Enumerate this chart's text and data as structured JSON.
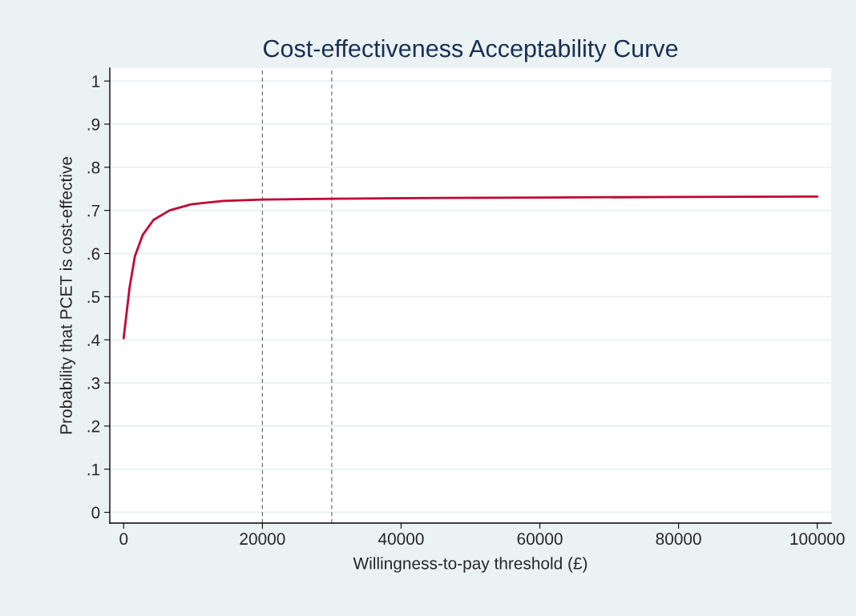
{
  "chart_data": {
    "type": "line",
    "title": "Cost-effectiveness Acceptability Curve",
    "xlabel": "Willingness-to-pay threshold (£)",
    "ylabel": "Probability that PCET is cost-effective",
    "series": [
      {
        "color": "#c10534",
        "x": [
          0,
          840,
          1620,
          2770,
          4310,
          6620,
          9700,
          14300,
          20000,
          30000,
          45000,
          60000,
          80000,
          100000
        ],
        "values": [
          0.404,
          0.52,
          0.594,
          0.644,
          0.678,
          0.7,
          0.714,
          0.722,
          0.725,
          0.727,
          0.729,
          0.73,
          0.731,
          0.732
        ]
      }
    ],
    "xlim": [
      -2000,
      102000
    ],
    "ylim": [
      -0.025,
      1.03
    ],
    "xticks": [
      0,
      20000,
      40000,
      60000,
      80000,
      100000
    ],
    "yticks": [
      {
        "value": 0,
        "label": "0"
      },
      {
        "value": 0.1,
        "label": ".1"
      },
      {
        "value": 0.2,
        "label": ".2"
      },
      {
        "value": 0.3,
        "label": ".3"
      },
      {
        "value": 0.4,
        "label": ".4"
      },
      {
        "value": 0.5,
        "label": ".5"
      },
      {
        "value": 0.6,
        "label": ".6"
      },
      {
        "value": 0.7,
        "label": ".7"
      },
      {
        "value": 0.8,
        "label": ".8"
      },
      {
        "value": 0.9,
        "label": ".9"
      },
      {
        "value": 1,
        "label": "1"
      }
    ],
    "grid": "y",
    "line_style": "solid",
    "marker": "none",
    "ref_lines": [
      {
        "axis": "x",
        "value": 20000,
        "color": "#707070",
        "line_style": "dashed"
      },
      {
        "axis": "x",
        "value": 30000,
        "color": "#707070",
        "line_style": "dashed"
      }
    ]
  }
}
